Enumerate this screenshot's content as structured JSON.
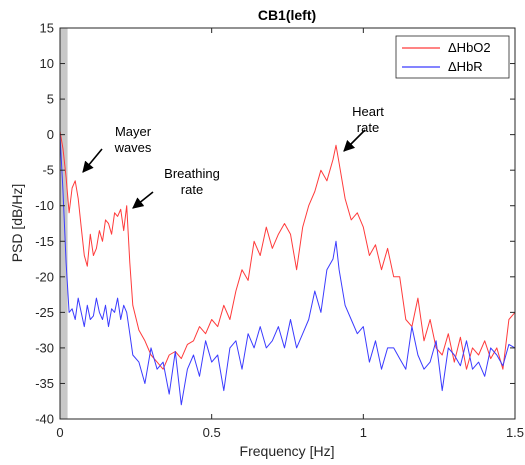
{
  "chart_data": {
    "type": "line",
    "title": "CB1(left)",
    "xlabel": "Frequency [Hz]",
    "ylabel": "PSD [dB/Hz]",
    "xlim": [
      0,
      1.5
    ],
    "ylim": [
      -40,
      15
    ],
    "xticks": [
      0,
      0.5,
      1,
      1.5
    ],
    "xtick_labels": [
      "0",
      "0.5",
      "1",
      "1.5"
    ],
    "yticks": [
      -40,
      -35,
      -30,
      -25,
      -20,
      -15,
      -10,
      -5,
      0,
      5,
      10,
      15
    ],
    "ytick_labels": [
      "-40",
      "-35",
      "-30",
      "-25",
      "-20",
      "-15",
      "-10",
      "-5",
      "0",
      "5",
      "10",
      "15"
    ],
    "grid": false,
    "legend_position": "top-right",
    "shaded_band_x": [
      0,
      0.025
    ],
    "series": [
      {
        "name": "ΔHbO2",
        "color": "#ff3b3b",
        "x": [
          0,
          0.01,
          0.02,
          0.03,
          0.04,
          0.05,
          0.06,
          0.07,
          0.08,
          0.09,
          0.1,
          0.11,
          0.12,
          0.13,
          0.14,
          0.15,
          0.16,
          0.17,
          0.18,
          0.19,
          0.2,
          0.21,
          0.22,
          0.23,
          0.24,
          0.26,
          0.28,
          0.3,
          0.32,
          0.34,
          0.36,
          0.38,
          0.4,
          0.42,
          0.44,
          0.46,
          0.48,
          0.5,
          0.52,
          0.54,
          0.56,
          0.58,
          0.6,
          0.62,
          0.64,
          0.66,
          0.68,
          0.7,
          0.72,
          0.74,
          0.76,
          0.78,
          0.8,
          0.82,
          0.84,
          0.86,
          0.88,
          0.9,
          0.91,
          0.92,
          0.94,
          0.96,
          0.98,
          1.0,
          1.02,
          1.04,
          1.06,
          1.08,
          1.1,
          1.12,
          1.14,
          1.16,
          1.18,
          1.2,
          1.22,
          1.24,
          1.26,
          1.28,
          1.3,
          1.32,
          1.34,
          1.36,
          1.38,
          1.4,
          1.42,
          1.44,
          1.46,
          1.48,
          1.5
        ],
        "values": [
          0.5,
          -2,
          -6,
          -11,
          -7.5,
          -6.5,
          -9,
          -13,
          -17,
          -18.5,
          -14,
          -17,
          -16,
          -13.5,
          -15,
          -12,
          -12.5,
          -14,
          -11,
          -11.5,
          -10.5,
          -13.5,
          -10,
          -18,
          -24,
          -27.5,
          -29,
          -31,
          -32,
          -33,
          -31,
          -30.5,
          -31.5,
          -29.5,
          -29,
          -27,
          -28,
          -26,
          -27,
          -24,
          -26,
          -22,
          -19,
          -20.5,
          -15,
          -17,
          -13,
          -16,
          -14,
          -12.5,
          -14,
          -19,
          -13,
          -10,
          -8,
          -5,
          -6.5,
          -3.5,
          -1.5,
          -4,
          -9,
          -12,
          -11,
          -13,
          -17,
          -15.5,
          -19,
          -16,
          -20,
          -20,
          -26,
          -27,
          -23,
          -29,
          -26,
          -30,
          -31,
          -28,
          -32,
          -28.5,
          -33,
          -30,
          -31,
          -29,
          -31.5,
          -30,
          -33,
          -26,
          -25
        ]
      },
      {
        "name": "ΔHbR",
        "color": "#3b3bff",
        "x": [
          0,
          0.01,
          0.02,
          0.03,
          0.04,
          0.05,
          0.06,
          0.07,
          0.08,
          0.09,
          0.1,
          0.11,
          0.12,
          0.13,
          0.14,
          0.15,
          0.16,
          0.17,
          0.18,
          0.19,
          0.2,
          0.21,
          0.22,
          0.23,
          0.24,
          0.26,
          0.28,
          0.3,
          0.32,
          0.34,
          0.36,
          0.38,
          0.4,
          0.42,
          0.44,
          0.46,
          0.48,
          0.5,
          0.52,
          0.54,
          0.56,
          0.58,
          0.6,
          0.62,
          0.64,
          0.66,
          0.68,
          0.7,
          0.72,
          0.74,
          0.76,
          0.78,
          0.8,
          0.82,
          0.84,
          0.86,
          0.88,
          0.9,
          0.91,
          0.92,
          0.94,
          0.96,
          0.98,
          1.0,
          1.02,
          1.04,
          1.06,
          1.08,
          1.1,
          1.12,
          1.14,
          1.16,
          1.18,
          1.2,
          1.22,
          1.24,
          1.26,
          1.28,
          1.3,
          1.32,
          1.34,
          1.36,
          1.38,
          1.4,
          1.42,
          1.44,
          1.46,
          1.48,
          1.5
        ],
        "values": [
          0,
          -8,
          -18,
          -25,
          -24.5,
          -26,
          -23,
          -25,
          -27,
          -24,
          -26,
          -25.5,
          -23,
          -25,
          -26,
          -24,
          -27,
          -24.5,
          -25,
          -23,
          -26,
          -24,
          -25,
          -28,
          -31,
          -32,
          -35,
          -30,
          -33,
          -32,
          -36.5,
          -30.5,
          -38,
          -33,
          -31,
          -34,
          -29,
          -32,
          -31,
          -36,
          -30,
          -29,
          -33,
          -28,
          -30,
          -27,
          -30,
          -29,
          -27,
          -30,
          -26,
          -30,
          -28,
          -26,
          -22,
          -25,
          -19,
          -17.5,
          -15,
          -19,
          -24,
          -26,
          -28,
          -27,
          -32,
          -29,
          -33,
          -30,
          -30,
          -31.5,
          -33,
          -27,
          -31,
          -33,
          -32,
          -29,
          -36,
          -30,
          -31,
          -32.5,
          -29,
          -33,
          -32,
          -34,
          -30,
          -31,
          -32.5,
          -29.5,
          -30
        ]
      }
    ],
    "annotations": [
      {
        "lines": [
          "Mayer",
          "waves"
        ],
        "target": [
          0.07,
          -7
        ]
      },
      {
        "lines": [
          "Breathing",
          "rate"
        ],
        "target": [
          0.225,
          -10.8
        ]
      },
      {
        "lines": [
          "Heart",
          "rate"
        ],
        "target": [
          0.93,
          -1.6
        ]
      }
    ]
  }
}
